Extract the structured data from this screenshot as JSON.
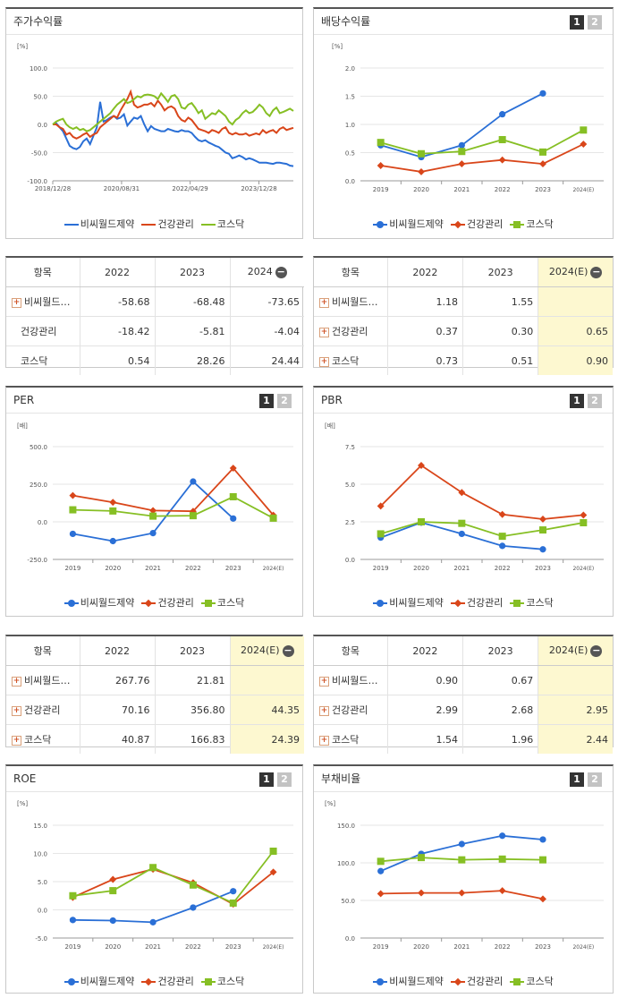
{
  "series_meta": [
    {
      "name": "비씨월드제약",
      "color": "#2a6fd6",
      "marker": "circle"
    },
    {
      "name": "건강관리",
      "color": "#d9461a",
      "marker": "diamond"
    },
    {
      "name": "코스닥",
      "color": "#86bf24",
      "marker": "square"
    }
  ],
  "panels": [
    {
      "id": "stock-return",
      "title": "주가수익률",
      "unit": "[%]",
      "pager": false,
      "chart_data": {
        "type": "line",
        "title": "주가수익률",
        "ylim": [
          -100,
          100
        ],
        "yticks": [
          "100.0",
          "50.0",
          "0.0",
          "-50.0",
          "-100.0"
        ],
        "xticks": [
          "2018/12/28",
          "2020/08/31",
          "2022/04/29",
          "2023/12/28"
        ],
        "xtick_pos": [
          0,
          0.286,
          0.571,
          0.857
        ],
        "x_labels_index": [
          0,
          22,
          44,
          66
        ],
        "series": [
          {
            "name": "비씨월드제약",
            "values": [
              0,
              2,
              -5,
              -12,
              -25,
              -38,
              -42,
              -44,
              -40,
              -30,
              -25,
              -35,
              -20,
              -5,
              40,
              5,
              8,
              12,
              15,
              10,
              12,
              18,
              -2,
              5,
              12,
              10,
              15,
              0,
              -12,
              -3,
              -8,
              -10,
              -12,
              -12,
              -8,
              -10,
              -12,
              -13,
              -10,
              -12,
              -12,
              -15,
              -22,
              -28,
              -30,
              -28,
              -32,
              -35,
              -38,
              -40,
              -45,
              -50,
              -52,
              -60,
              -58,
              -55,
              -58,
              -62,
              -60,
              -62,
              -65,
              -68,
              -68,
              -68,
              -69,
              -70,
              -68,
              -68,
              -69,
              -70,
              -73,
              -74
            ]
          },
          {
            "name": "건강관리",
            "values": [
              0,
              0,
              -5,
              -8,
              -18,
              -15,
              -22,
              -25,
              -22,
              -18,
              -15,
              -22,
              -18,
              -15,
              -5,
              0,
              5,
              10,
              15,
              12,
              25,
              35,
              45,
              58,
              35,
              30,
              32,
              35,
              35,
              38,
              32,
              42,
              35,
              25,
              30,
              32,
              28,
              15,
              8,
              5,
              12,
              8,
              0,
              -8,
              -10,
              -12,
              -15,
              -10,
              -12,
              -15,
              -8,
              -5,
              -15,
              -18,
              -15,
              -18,
              -18,
              -16,
              -20,
              -18,
              -16,
              -18,
              -10,
              -15,
              -12,
              -10,
              -15,
              -8,
              -5,
              -10,
              -8,
              -6
            ]
          },
          {
            "name": "코스닥",
            "values": [
              0,
              5,
              8,
              10,
              0,
              -5,
              -8,
              -5,
              -10,
              -8,
              -12,
              -10,
              -5,
              0,
              5,
              10,
              15,
              20,
              28,
              35,
              40,
              45,
              38,
              40,
              45,
              50,
              48,
              52,
              53,
              52,
              50,
              45,
              55,
              48,
              40,
              50,
              52,
              45,
              30,
              28,
              35,
              38,
              30,
              20,
              25,
              10,
              15,
              20,
              18,
              25,
              20,
              15,
              5,
              0,
              8,
              12,
              20,
              25,
              20,
              22,
              28,
              35,
              30,
              20,
              15,
              25,
              30,
              20,
              22,
              25,
              28,
              24
            ]
          }
        ]
      }
    },
    {
      "id": "dividend-yield",
      "title": "배당수익률",
      "unit": "[%]",
      "pager": true,
      "pager_labels": [
        "1",
        "2"
      ],
      "chart_data": {
        "type": "line",
        "title": "배당수익률",
        "ylim": [
          0,
          2
        ],
        "yticks": [
          "2.0",
          "1.5",
          "1.0",
          "0.5",
          "0.0"
        ],
        "categories": [
          "2019",
          "2020",
          "2021",
          "2022",
          "2023",
          "2024(E)"
        ],
        "series": [
          {
            "name": "비씨월드제약",
            "values": [
              0.63,
              0.42,
              0.63,
              1.18,
              1.55,
              null
            ]
          },
          {
            "name": "건강관리",
            "values": [
              0.27,
              0.16,
              0.3,
              0.37,
              0.3,
              0.65
            ]
          },
          {
            "name": "코스닥",
            "values": [
              0.68,
              0.48,
              0.52,
              0.73,
              0.51,
              0.9
            ]
          }
        ]
      }
    },
    {
      "id": "per",
      "title": "PER",
      "unit": "[배]",
      "pager": true,
      "pager_labels": [
        "1",
        "2"
      ],
      "chart_data": {
        "type": "line",
        "title": "PER",
        "ylim": [
          -250,
          500
        ],
        "yticks": [
          "500.0",
          "250.0",
          "0.0",
          "-250.0"
        ],
        "categories": [
          "2019",
          "2020",
          "2021",
          "2022",
          "2023",
          "2024(E)"
        ],
        "series": [
          {
            "name": "비씨월드제약",
            "values": [
              -80,
              -128,
              -75,
              267.76,
              21.81,
              null
            ]
          },
          {
            "name": "건강관리",
            "values": [
              175,
              130,
              75,
              70.16,
              356.8,
              44.35
            ]
          },
          {
            "name": "코스닥",
            "values": [
              80,
              72,
              38,
              40.87,
              166.83,
              24.39
            ]
          }
        ]
      }
    },
    {
      "id": "pbr",
      "title": "PBR",
      "unit": "[배]",
      "pager": true,
      "pager_labels": [
        "1",
        "2"
      ],
      "chart_data": {
        "type": "line",
        "title": "PBR",
        "ylim": [
          0,
          7.5
        ],
        "yticks": [
          "7.5",
          "5.0",
          "2.5",
          "0.0"
        ],
        "categories": [
          "2019",
          "2020",
          "2021",
          "2022",
          "2023",
          "2024(E)"
        ],
        "series": [
          {
            "name": "비씨월드제약",
            "values": [
              1.45,
              2.45,
              1.7,
              0.9,
              0.67,
              null
            ]
          },
          {
            "name": "건강관리",
            "values": [
              3.55,
              6.25,
              4.45,
              2.99,
              2.68,
              2.95
            ]
          },
          {
            "name": "코스닥",
            "values": [
              1.7,
              2.5,
              2.4,
              1.54,
              1.96,
              2.44
            ]
          }
        ]
      }
    },
    {
      "id": "roe",
      "title": "ROE",
      "unit": "[%]",
      "pager": true,
      "pager_labels": [
        "1",
        "2"
      ],
      "chart_data": {
        "type": "line",
        "title": "ROE",
        "ylim": [
          -5,
          15
        ],
        "yticks": [
          "15.0",
          "10.0",
          "5.0",
          "0.0",
          "-5.0"
        ],
        "categories": [
          "2019",
          "2020",
          "2021",
          "2022",
          "2023",
          "2024(E)"
        ],
        "series": [
          {
            "name": "비씨월드제약",
            "values": [
              -1.8,
              -1.9,
              -2.2,
              0.4,
              3.3,
              null
            ]
          },
          {
            "name": "건강관리",
            "values": [
              2.2,
              5.4,
              7.2,
              4.8,
              1.0,
              6.7
            ]
          },
          {
            "name": "코스닥",
            "values": [
              2.5,
              3.4,
              7.5,
              4.4,
              1.2,
              10.4
            ]
          }
        ]
      }
    },
    {
      "id": "debt-ratio",
      "title": "부채비율",
      "unit": "[%]",
      "pager": true,
      "pager_labels": [
        "1",
        "2"
      ],
      "chart_data": {
        "type": "line",
        "title": "부채비율",
        "ylim": [
          0,
          150
        ],
        "yticks": [
          "150.0",
          "100.0",
          "50.0",
          "0.0"
        ],
        "categories": [
          "2019",
          "2020",
          "2021",
          "2022",
          "2023",
          "2024(E)"
        ],
        "series": [
          {
            "name": "비씨월드제약",
            "values": [
              89,
              112,
              125,
              136,
              131,
              null
            ]
          },
          {
            "name": "건강관리",
            "values": [
              59,
              60,
              60,
              63,
              52,
              null
            ]
          },
          {
            "name": "코스닥",
            "values": [
              102,
              107,
              104,
              105,
              104,
              null
            ]
          }
        ]
      }
    }
  ],
  "tables": [
    {
      "id": "stock-return-table",
      "headers": [
        "항목",
        "2022",
        "2023",
        "2024"
      ],
      "last_est": false,
      "last_minus": true,
      "rows": [
        {
          "name": "비씨월드…",
          "plus": true,
          "values": [
            "-58.68",
            "-68.48",
            "-73.65"
          ]
        },
        {
          "name": "건강관리",
          "plus": false,
          "values": [
            "-18.42",
            "-5.81",
            "-4.04"
          ]
        },
        {
          "name": "코스닥",
          "plus": false,
          "values": [
            "0.54",
            "28.26",
            "24.44"
          ]
        }
      ]
    },
    {
      "id": "dividend-table",
      "headers": [
        "항목",
        "2022",
        "2023",
        "2024(E)"
      ],
      "last_est": true,
      "last_minus": true,
      "rows": [
        {
          "name": "비씨월드…",
          "plus": true,
          "values": [
            "1.18",
            "1.55",
            ""
          ]
        },
        {
          "name": "건강관리",
          "plus": true,
          "values": [
            "0.37",
            "0.30",
            "0.65"
          ]
        },
        {
          "name": "코스닥",
          "plus": true,
          "values": [
            "0.73",
            "0.51",
            "0.90"
          ]
        }
      ]
    },
    {
      "id": "per-table",
      "headers": [
        "항목",
        "2022",
        "2023",
        "2024(E)"
      ],
      "last_est": true,
      "last_minus": true,
      "rows": [
        {
          "name": "비씨월드…",
          "plus": true,
          "values": [
            "267.76",
            "21.81",
            ""
          ]
        },
        {
          "name": "건강관리",
          "plus": true,
          "values": [
            "70.16",
            "356.80",
            "44.35"
          ]
        },
        {
          "name": "코스닥",
          "plus": true,
          "values": [
            "40.87",
            "166.83",
            "24.39"
          ]
        }
      ]
    },
    {
      "id": "pbr-table",
      "headers": [
        "항목",
        "2022",
        "2023",
        "2024(E)"
      ],
      "last_est": true,
      "last_minus": true,
      "rows": [
        {
          "name": "비씨월드…",
          "plus": true,
          "values": [
            "0.90",
            "0.67",
            ""
          ]
        },
        {
          "name": "건강관리",
          "plus": true,
          "values": [
            "2.99",
            "2.68",
            "2.95"
          ]
        },
        {
          "name": "코스닥",
          "plus": true,
          "values": [
            "1.54",
            "1.96",
            "2.44"
          ]
        }
      ]
    }
  ],
  "minus_glyph": "−",
  "plus_glyph": "+"
}
